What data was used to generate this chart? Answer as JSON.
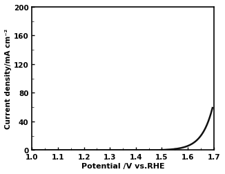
{
  "title": "",
  "xlabel": "Potential /V vs.RHE",
  "ylabel": "Current density/mA cm⁻²",
  "xlim": [
    1.0,
    1.7
  ],
  "ylim": [
    0,
    200
  ],
  "xticks": [
    1.0,
    1.1,
    1.2,
    1.3,
    1.4,
    1.5,
    1.6,
    1.7
  ],
  "yticks": [
    0,
    40,
    80,
    120,
    160,
    200
  ],
  "line_color": "#111111",
  "line_width": 1.8,
  "background_color": "#ffffff",
  "onset_potential": 1.47,
  "exp_scale": 0.042,
  "exp_prefactor": 0.28
}
